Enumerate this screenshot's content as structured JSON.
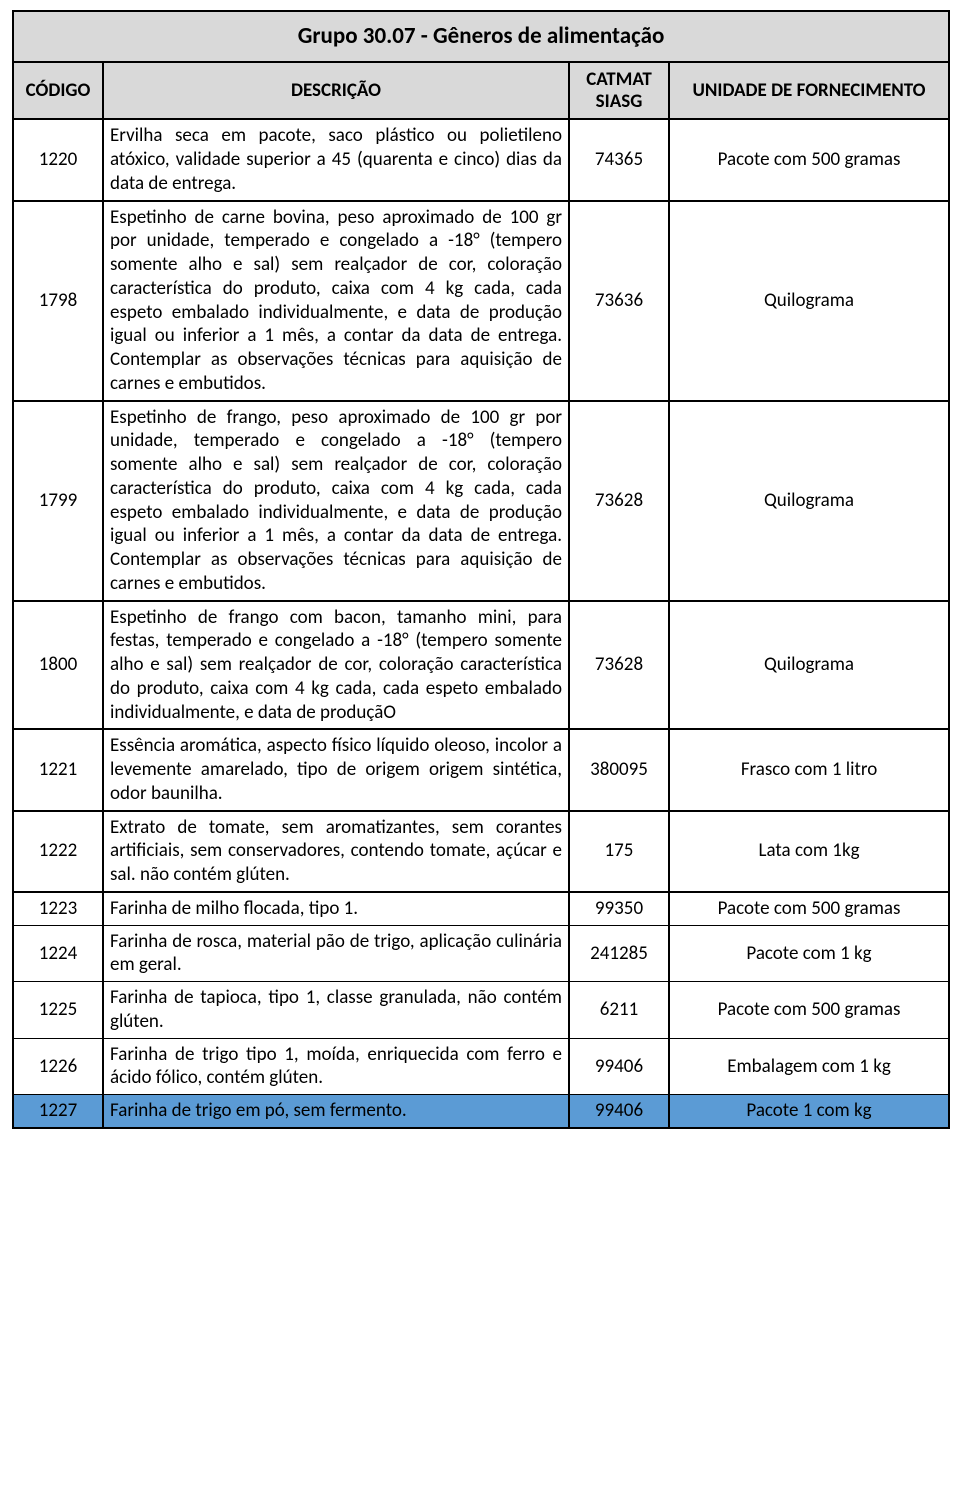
{
  "title": "Grupo 30.07 - Gêneros de alimentação",
  "headers": {
    "codigo": "CÓDIGO",
    "descricao": "DESCRIÇÃO",
    "catmat_line1": "CATMAT",
    "catmat_line2": "SIASG",
    "unidade": "UNIDADE DE FORNECIMENTO"
  },
  "colors": {
    "header_bg": "#d9d9d9",
    "highlight_row_bg": "#5b9bd5",
    "border": "#000000",
    "text": "#000000",
    "page_bg": "#ffffff"
  },
  "rows": [
    {
      "codigo": "1220",
      "descricao": "Ervilha seca em pacote, saco plástico ou polietileno atóxico, validade superior a 45 (quarenta e cinco) dias da data de entrega.",
      "catmat": "74365",
      "unidade": "Pacote com 500 gramas",
      "sep_after": true,
      "highlight": false
    },
    {
      "codigo": "1798",
      "descricao": "Espetinho de carne bovina, peso aproximado de 100 gr por unidade, temperado e congelado a -18° (tempero somente alho e sal) sem realçador de cor, coloração característica do produto, caixa com 4 kg cada, cada espeto embalado individualmente, e data de produção igual ou inferior a 1 mês, a contar da data de entrega. Contemplar as observações técnicas para aquisição de carnes e embutidos.",
      "catmat": "73636",
      "unidade": "Quilograma",
      "sep_after": true,
      "highlight": false
    },
    {
      "codigo": "1799",
      "descricao": "Espetinho de frango, peso aproximado de 100 gr por unidade, temperado e congelado a -18° (tempero somente alho e sal) sem realçador de cor, coloração característica do produto, caixa com 4 kg cada, cada espeto embalado individualmente, e data de produção igual ou inferior a 1 mês, a contar da data de entrega. Contemplar as observações técnicas para aquisição de carnes e embutidos.",
      "catmat": "73628",
      "unidade": "Quilograma",
      "sep_after": true,
      "highlight": false
    },
    {
      "codigo": "1800",
      "descricao": "Espetinho de frango com bacon,  tamanho mini, para festas, temperado e congelado a -18° (tempero somente alho e sal) sem realçador de cor, coloração característica do produto, caixa com 4 kg cada, cada espeto embalado individualmente, e data de produçãO",
      "catmat": "73628",
      "unidade": "Quilograma",
      "sep_after": true,
      "highlight": false
    },
    {
      "codigo": "1221",
      "descricao": "Essência aromática, aspecto físico líquido oleoso, incolor a levemente amarelado, tipo de origem origem sintética, odor baunilha.",
      "catmat": "380095",
      "unidade": "Frasco com 1 litro",
      "sep_after": true,
      "highlight": false
    },
    {
      "codigo": "1222",
      "descricao": "Extrato de tomate, sem aromatizantes, sem corantes artificiais, sem conservadores, contendo tomate, açúcar e sal. não contém glúten.",
      "catmat": "175",
      "unidade": "Lata com 1kg",
      "sep_after": true,
      "highlight": false
    },
    {
      "codigo": "1223",
      "descricao": "Farinha de milho flocada, tipo 1.",
      "catmat": "99350",
      "unidade": "Pacote com 500 gramas",
      "sep_after": false,
      "highlight": false
    },
    {
      "codigo": "1224",
      "descricao": "Farinha de rosca, material pão de trigo, aplicação culinária em geral.",
      "catmat": "241285",
      "unidade": "Pacote com 1 kg",
      "sep_after": false,
      "highlight": false
    },
    {
      "codigo": "1225",
      "descricao": "Farinha de tapioca, tipo 1, classe granulada, não contém glúten.",
      "catmat": "6211",
      "unidade": "Pacote com 500 gramas",
      "sep_after": false,
      "highlight": false
    },
    {
      "codigo": "1226",
      "descricao": "Farinha de trigo  tipo 1, moída, enriquecida com ferro e ácido fólico, contém glúten.",
      "catmat": "99406",
      "unidade": "Embalagem com 1 kg",
      "sep_after": false,
      "highlight": false
    },
    {
      "codigo": "1227",
      "descricao": "Farinha de trigo em pó, sem fermento.",
      "catmat": "99406",
      "unidade": "Pacote 1 com kg",
      "sep_after": true,
      "highlight": true
    }
  ]
}
